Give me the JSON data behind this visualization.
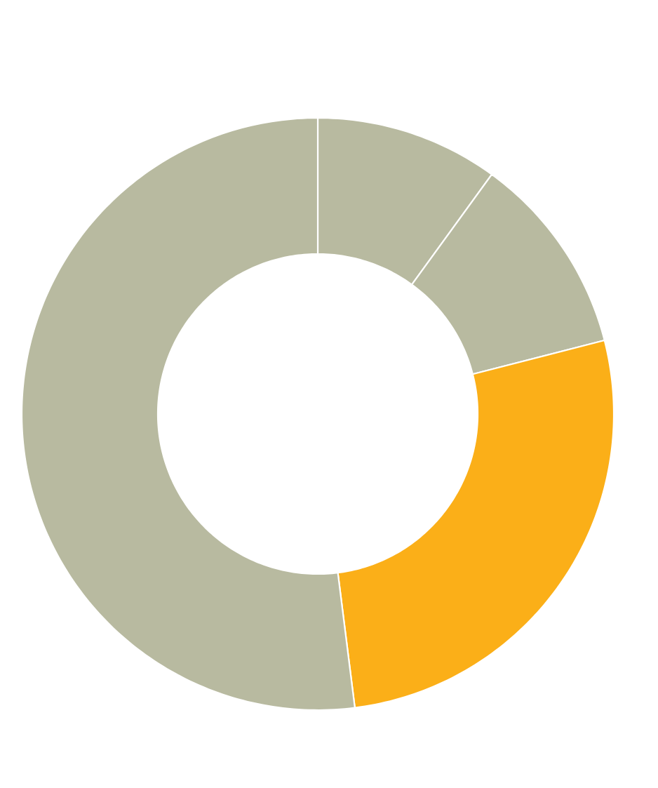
{
  "chart_data": {
    "type": "donut",
    "categories": [
      null,
      null,
      null,
      null
    ],
    "values": [
      10,
      11,
      27,
      52
    ],
    "colors": [
      "#b8baa0",
      "#b8baa0",
      "#fbaf18",
      "#b8baa0"
    ]
  }
}
